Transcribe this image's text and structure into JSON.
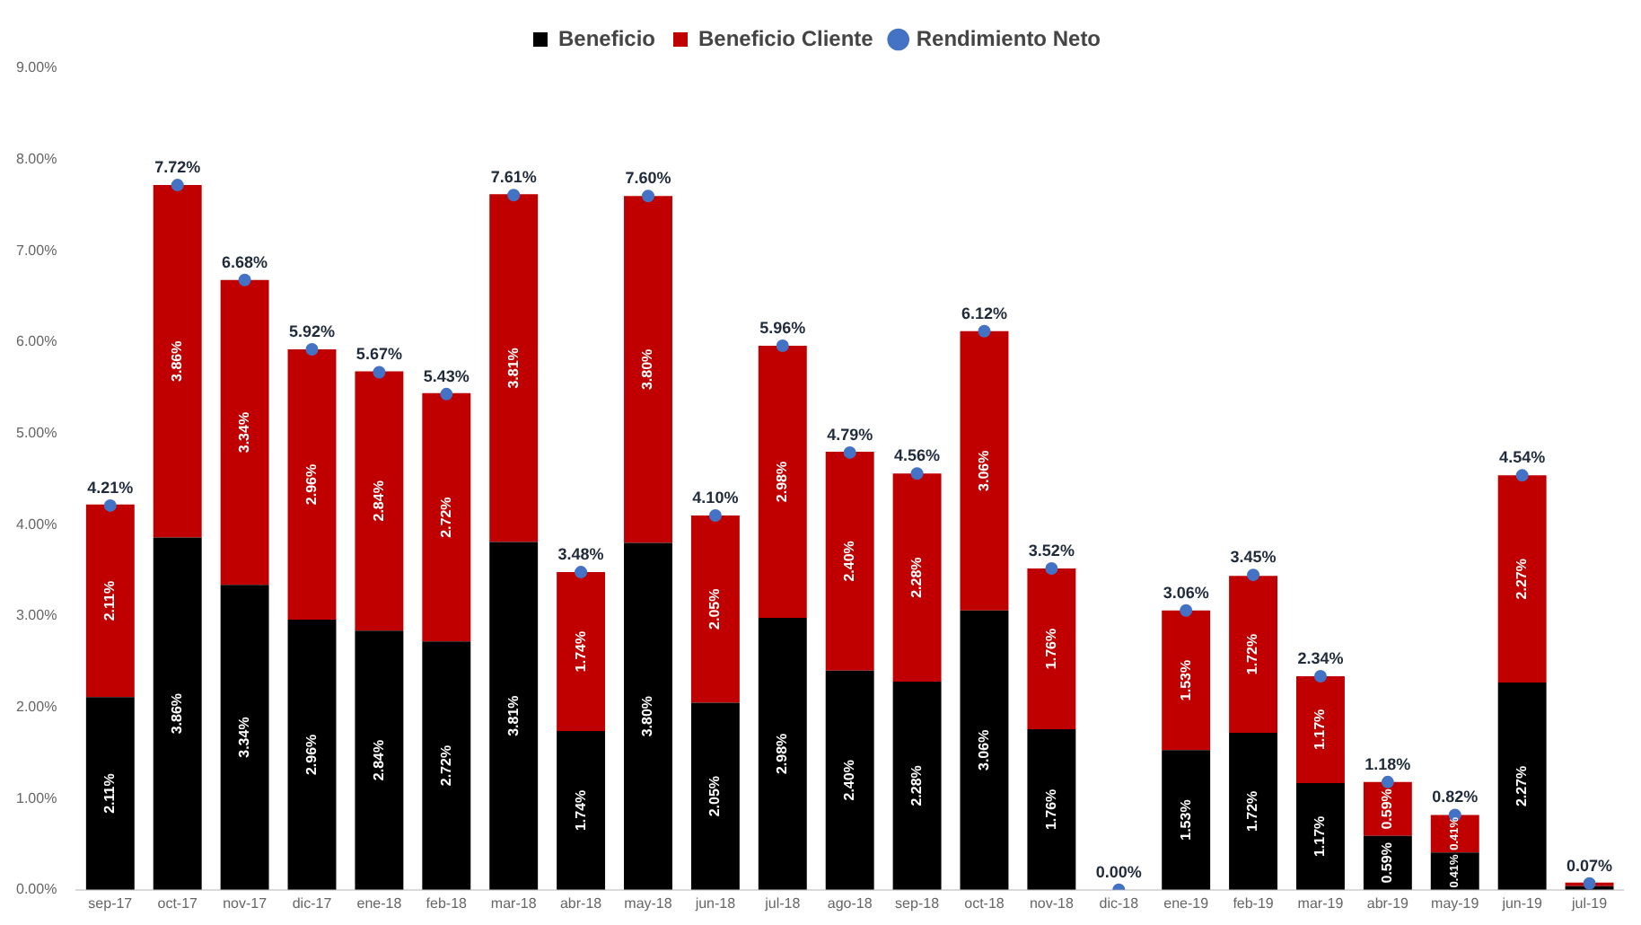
{
  "chart_data": {
    "type": "bar",
    "stacked": true,
    "legend": "top",
    "grid": false,
    "marker": "circle",
    "categories": [
      "sep-17",
      "oct-17",
      "nov-17",
      "dic-17",
      "ene-18",
      "feb-18",
      "mar-18",
      "abr-18",
      "may-18",
      "jun-18",
      "jul-18",
      "ago-18",
      "sep-18",
      "oct-18",
      "nov-18",
      "dic-18",
      "ene-19",
      "feb-19",
      "mar-19",
      "abr-19",
      "may-19",
      "jun-19",
      "jul-19"
    ],
    "ylim": [
      0,
      9
    ],
    "yticks": [
      {
        "value": 0,
        "label": "0.00%"
      },
      {
        "value": 1,
        "label": "1.00%"
      },
      {
        "value": 2,
        "label": "2.00%"
      },
      {
        "value": 3,
        "label": "3.00%"
      },
      {
        "value": 4,
        "label": "4.00%"
      },
      {
        "value": 5,
        "label": "5.00%"
      },
      {
        "value": 6,
        "label": "6.00%"
      },
      {
        "value": 7,
        "label": "7.00%"
      },
      {
        "value": 8,
        "label": "8.00%"
      },
      {
        "value": 9,
        "label": "9.00%"
      }
    ],
    "series": [
      {
        "name": "Beneficio",
        "color": "#000000",
        "values": [
          2.11,
          3.86,
          3.34,
          2.96,
          2.84,
          2.72,
          3.81,
          1.74,
          3.8,
          2.05,
          2.98,
          2.4,
          2.28,
          3.06,
          1.76,
          0,
          1.53,
          1.72,
          1.17,
          0.59,
          0.41,
          2.27,
          0.04
        ],
        "value_labels": [
          "2.11%",
          "3.86%",
          "3.34%",
          "2.96%",
          "2.84%",
          "2.72%",
          "3.81%",
          "1.74%",
          "3.80%",
          "2.05%",
          "2.98%",
          "2.40%",
          "2.28%",
          "3.06%",
          "1.76%",
          null,
          "1.53%",
          "1.72%",
          "1.17%",
          "0.59%",
          "0.41%",
          "2.27%",
          null
        ]
      },
      {
        "name": "Beneficio Cliente",
        "color": "#c00000",
        "values": [
          2.11,
          3.86,
          3.34,
          2.96,
          2.84,
          2.72,
          3.81,
          1.74,
          3.8,
          2.05,
          2.98,
          2.4,
          2.28,
          3.06,
          1.76,
          0,
          1.53,
          1.72,
          1.17,
          0.59,
          0.41,
          2.27,
          0.04
        ],
        "value_labels": [
          "2.11%",
          "3.86%",
          "3.34%",
          "2.96%",
          "2.84%",
          "2.72%",
          "3.81%",
          "1.74%",
          "3.80%",
          "2.05%",
          "2.98%",
          "2.40%",
          "2.28%",
          "3.06%",
          "1.76%",
          null,
          "1.53%",
          "1.72%",
          "1.17%",
          "0.59%",
          "0.41%",
          "2.27%",
          null
        ]
      },
      {
        "name": "Rendimiento Neto",
        "type": "scatter",
        "color": "#4472c4",
        "x": [
          "sep-17",
          "oct-17",
          "nov-17",
          "dic-17",
          "ene-18",
          "feb-18",
          "mar-18",
          "abr-18",
          "may-18",
          "jun-18",
          "jul-18",
          "ago-18",
          "sep-18",
          "oct-18",
          "nov-18",
          "dic-18",
          "ene-19",
          "feb-19",
          "mar-19",
          "abr-19",
          "may-19",
          "jun-19",
          "jul-19"
        ],
        "values": [
          4.21,
          7.72,
          6.68,
          5.92,
          5.67,
          5.43,
          7.61,
          3.48,
          7.6,
          4.1,
          5.96,
          4.79,
          4.56,
          6.12,
          3.52,
          0,
          3.06,
          3.45,
          2.34,
          1.18,
          0.82,
          4.54,
          0.07
        ],
        "value_labels": [
          "4.21%",
          "7.72%",
          "6.68%",
          "5.92%",
          "5.67%",
          "5.43%",
          "7.61%",
          "3.48%",
          "7.60%",
          "4.10%",
          "5.96%",
          "4.79%",
          "4.56%",
          "6.12%",
          "3.52%",
          "0.00%",
          "3.06%",
          "3.45%",
          "2.34%",
          "1.18%",
          "0.82%",
          "4.54%",
          "0.07%"
        ]
      }
    ]
  }
}
